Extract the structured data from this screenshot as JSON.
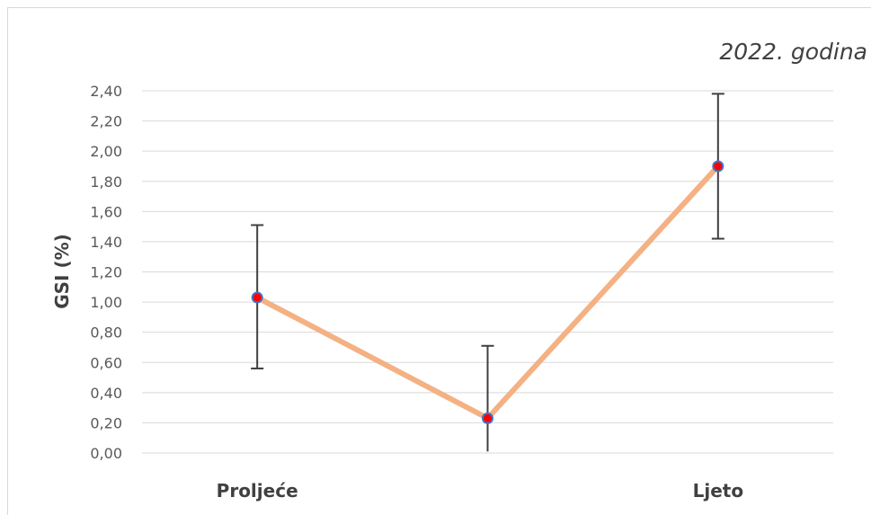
{
  "chart_data": {
    "type": "line",
    "title": "2022. godina",
    "ylabel": "GSI (%)",
    "xlabel": "",
    "ylim": [
      0,
      2.4
    ],
    "y_ticks": [
      "0,00",
      "0,20",
      "0,40",
      "0,60",
      "0,80",
      "1,00",
      "1,20",
      "1,40",
      "1,60",
      "1,80",
      "2,00",
      "2,20",
      "2,40"
    ],
    "y_tick_values": [
      0,
      0.2,
      0.4,
      0.6,
      0.8,
      1.0,
      1.2,
      1.4,
      1.6,
      1.8,
      2.0,
      2.2,
      2.4
    ],
    "categories": [
      "Proljeće",
      "",
      "Ljeto"
    ],
    "grid": true,
    "series": [
      {
        "values": [
          1.03,
          0.23,
          1.9
        ],
        "error_low": [
          0.56,
          0.01,
          1.42
        ],
        "error_high": [
          1.51,
          0.71,
          2.38
        ],
        "line_color": "#f4b183",
        "marker_fill": "#ff0000",
        "marker_edge": "#4472c4"
      }
    ]
  }
}
